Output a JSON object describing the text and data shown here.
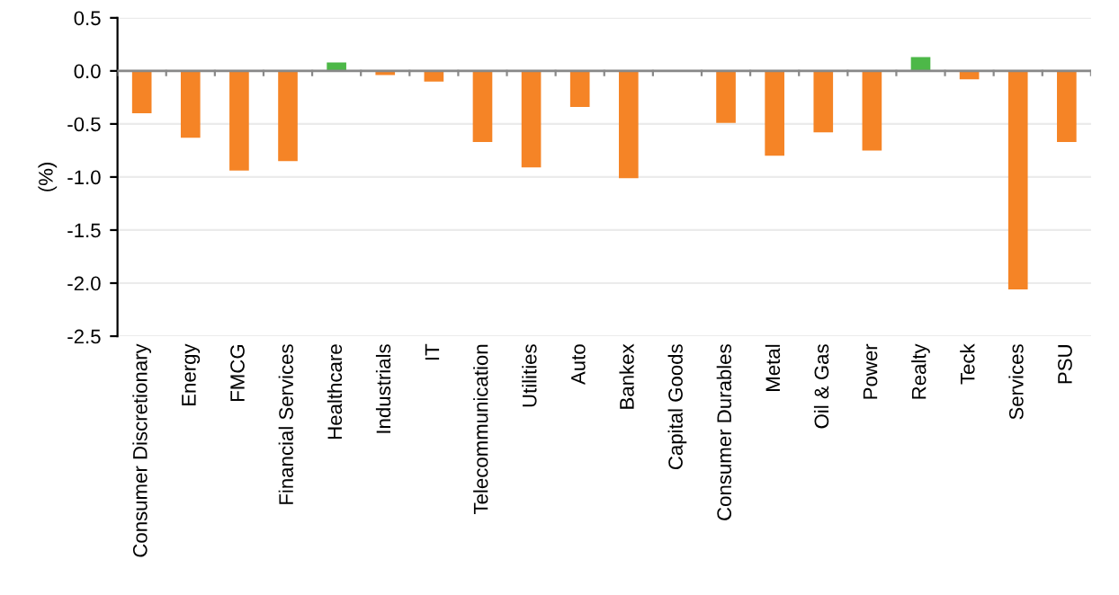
{
  "chart_data": {
    "type": "bar",
    "ylabel": "(%)",
    "categories": [
      "Consumer Discretionary",
      "Energy",
      "FMCG",
      "Financial Services",
      "Healthcare",
      "Industrials",
      "IT",
      "Telecommunication",
      "Utilities",
      "Auto",
      "Bankex",
      "Capital Goods",
      "Consumer Durables",
      "Metal",
      "Oil & Gas",
      "Power",
      "Realty",
      "Teck",
      "Services",
      "PSU"
    ],
    "values": [
      -0.4,
      -0.63,
      -0.94,
      -0.85,
      0.08,
      -0.04,
      -0.1,
      -0.67,
      -0.91,
      -0.34,
      -1.01,
      0.0,
      -0.49,
      -0.8,
      -0.58,
      -0.75,
      0.13,
      -0.08,
      -2.06,
      -0.67
    ],
    "colors": [
      "#f58426",
      "#f58426",
      "#f58426",
      "#f58426",
      "#4db848",
      "#f58426",
      "#f58426",
      "#f58426",
      "#f58426",
      "#f58426",
      "#f58426",
      "#f58426",
      "#f58426",
      "#f58426",
      "#f58426",
      "#f58426",
      "#4db848",
      "#f58426",
      "#f58426",
      "#f58426"
    ],
    "ylim": [
      -2.5,
      0.5
    ],
    "yticks": [
      {
        "value": -2.5,
        "label": "-2.5"
      },
      {
        "value": -2.0,
        "label": "-2.0"
      },
      {
        "value": -1.5,
        "label": "-1.5"
      },
      {
        "value": -1.0,
        "label": "-1.0"
      },
      {
        "value": -0.5,
        "label": "-0.5"
      },
      {
        "value": 0.0,
        "label": "0.0"
      },
      {
        "value": 0.5,
        "label": "0.5"
      }
    ],
    "grid": "y"
  }
}
